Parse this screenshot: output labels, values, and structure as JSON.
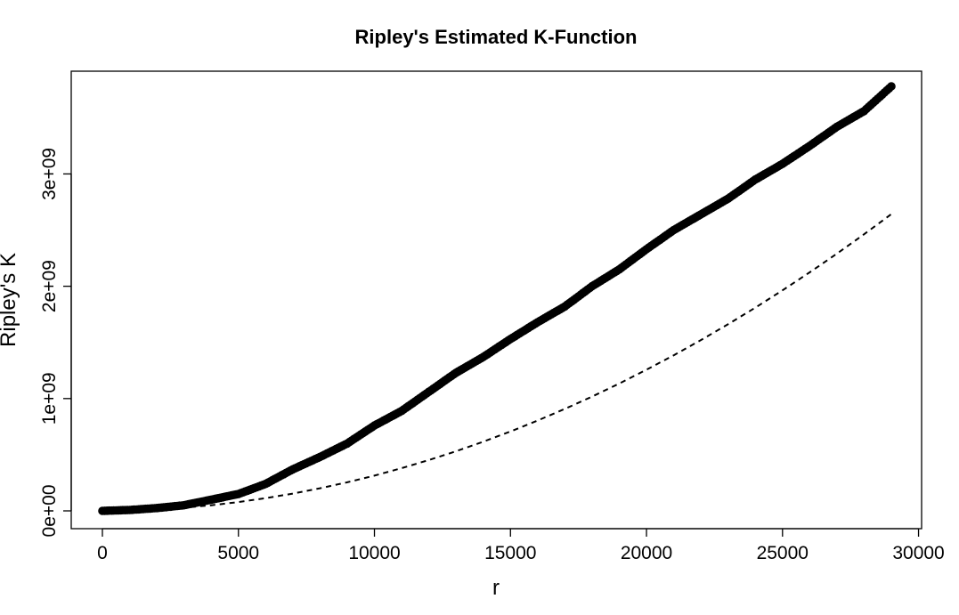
{
  "chart_data": {
    "type": "line",
    "title": "Ripley's Estimated K-Function",
    "xlabel": "r",
    "ylabel": "Ripley's K",
    "xlim": [
      0,
      29000
    ],
    "ylim": [
      0,
      3780000000
    ],
    "x_ticks": [
      0,
      5000,
      10000,
      15000,
      20000,
      25000,
      30000
    ],
    "x_tick_labels": [
      "0",
      "5000",
      "10000",
      "15000",
      "20000",
      "25000",
      "30000"
    ],
    "y_ticks": [
      0,
      1000000000,
      2000000000,
      3000000000
    ],
    "y_tick_labels": [
      "0e+00",
      "1e+09",
      "2e+09",
      "3e+09"
    ],
    "grid": false,
    "legend": "none",
    "series": [
      {
        "style": "points-overplotted",
        "color": "#000000",
        "points": [
          [
            0,
            0
          ],
          [
            1000,
            8000000
          ],
          [
            2000,
            25000000
          ],
          [
            3000,
            50000000
          ],
          [
            4000,
            100000000
          ],
          [
            5000,
            150000000
          ],
          [
            6000,
            240000000
          ],
          [
            7000,
            370000000
          ],
          [
            8000,
            480000000
          ],
          [
            9000,
            600000000
          ],
          [
            10000,
            760000000
          ],
          [
            11000,
            890000000
          ],
          [
            12000,
            1060000000
          ],
          [
            13000,
            1230000000
          ],
          [
            14000,
            1370000000
          ],
          [
            15000,
            1530000000
          ],
          [
            16000,
            1680000000
          ],
          [
            17000,
            1820000000
          ],
          [
            18000,
            2000000000
          ],
          [
            19000,
            2150000000
          ],
          [
            20000,
            2330000000
          ],
          [
            21000,
            2500000000
          ],
          [
            22000,
            2640000000
          ],
          [
            23000,
            2780000000
          ],
          [
            24000,
            2950000000
          ],
          [
            25000,
            3090000000
          ],
          [
            26000,
            3250000000
          ],
          [
            27000,
            3420000000
          ],
          [
            28000,
            3560000000
          ],
          [
            29000,
            3780000000
          ]
        ]
      },
      {
        "style": "dashed-line",
        "color": "#000000",
        "function": "pi*r^2",
        "points": [
          [
            0,
            0
          ],
          [
            1000,
            3141593
          ],
          [
            2000,
            12566371
          ],
          [
            3000,
            28274334
          ],
          [
            4000,
            50265482
          ],
          [
            5000,
            78539816
          ],
          [
            6000,
            113097336
          ],
          [
            7000,
            153938040
          ],
          [
            8000,
            201061930
          ],
          [
            9000,
            254469005
          ],
          [
            10000,
            314159265
          ],
          [
            11000,
            380132711
          ],
          [
            12000,
            452389342
          ],
          [
            13000,
            530929158
          ],
          [
            14000,
            615752160
          ],
          [
            15000,
            706858347
          ],
          [
            16000,
            804247719
          ],
          [
            17000,
            907920277
          ],
          [
            18000,
            1017876020
          ],
          [
            19000,
            1134114948
          ],
          [
            20000,
            1256637061
          ],
          [
            21000,
            1385442360
          ],
          [
            22000,
            1520530844
          ],
          [
            23000,
            1661902514
          ],
          [
            24000,
            1809557368
          ],
          [
            25000,
            1963495408
          ],
          [
            26000,
            2123716634
          ],
          [
            27000,
            2290221044
          ],
          [
            28000,
            2463008640
          ],
          [
            29000,
            2642079422
          ]
        ]
      }
    ]
  }
}
